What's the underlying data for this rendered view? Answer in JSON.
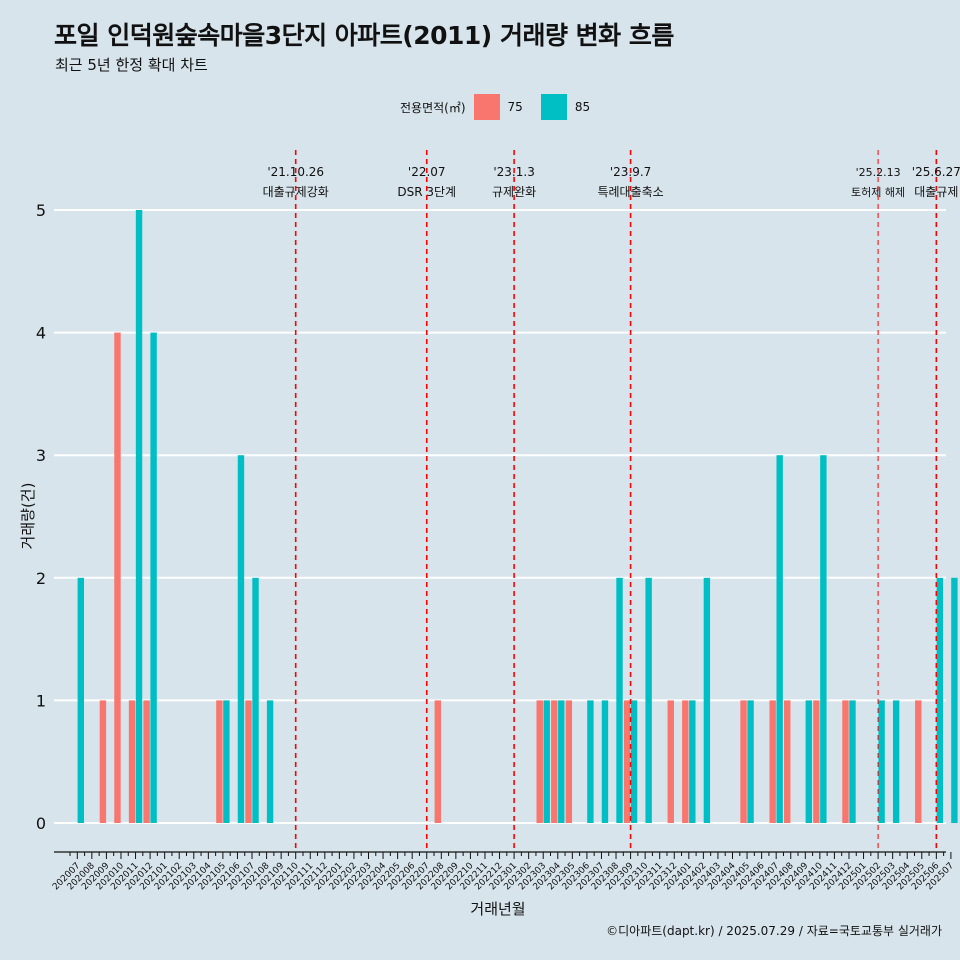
{
  "title": "포일 인덕원숲속마을3단지 아파트(2011) 거래량 변화 흐름",
  "subtitle": "최근 5년 한정 확대 차트",
  "caption": "©디아파트(dapt.kr) / 2025.07.29 / 자료=국토교통부 실거래가",
  "colors": {
    "s75": "#f8766d",
    "s85": "#00bfc4",
    "vline": "#ff0000",
    "grid": "#ffffff",
    "background": "#d7e4ec"
  },
  "chart_data": {
    "type": "bar",
    "title": "포일 인덕원숲속마을3단지 아파트(2011) 거래량 변화 흐름",
    "xlabel": "거래년월",
    "ylabel": "거래량(건)",
    "ylim": [
      -0.2,
      5.3
    ],
    "yticks": [
      0,
      1,
      2,
      3,
      4,
      5
    ],
    "legend_title": "전용면적(㎡)",
    "legend_position": "top",
    "categories": [
      "202007",
      "202008",
      "202009",
      "202010",
      "202011",
      "202012",
      "202101",
      "202102",
      "202103",
      "202104",
      "202105",
      "202106",
      "202107",
      "202108",
      "202109",
      "202110",
      "202111",
      "202112",
      "202201",
      "202202",
      "202203",
      "202204",
      "202205",
      "202206",
      "202207",
      "202208",
      "202209",
      "202210",
      "202211",
      "202212",
      "202301",
      "202302",
      "202303",
      "202304",
      "202305",
      "202306",
      "202307",
      "202308",
      "202309",
      "202310",
      "202311",
      "202312",
      "202401",
      "202402",
      "202403",
      "202404",
      "202405",
      "202406",
      "202407",
      "202408",
      "202409",
      "202410",
      "202411",
      "202412",
      "202501",
      "202502",
      "202503",
      "202504",
      "202505",
      "202506",
      "202507"
    ],
    "series": [
      {
        "name": "75",
        "values": [
          0,
          0,
          1,
          4,
          1,
          1,
          0,
          0,
          0,
          0,
          1,
          0,
          1,
          0,
          0,
          0,
          0,
          0,
          0,
          0,
          0,
          0,
          0,
          0,
          0,
          1,
          0,
          0,
          0,
          0,
          0,
          0,
          1,
          1,
          1,
          0,
          0,
          0,
          1,
          0,
          0,
          1,
          1,
          0,
          0,
          0,
          1,
          0,
          1,
          1,
          0,
          1,
          0,
          1,
          0,
          0,
          0,
          0,
          1,
          0,
          0
        ]
      },
      {
        "name": "85",
        "values": [
          2,
          0,
          0,
          0,
          5,
          4,
          0,
          0,
          0,
          0,
          1,
          3,
          2,
          1,
          0,
          0,
          0,
          0,
          0,
          0,
          0,
          0,
          0,
          0,
          0,
          0,
          0,
          0,
          0,
          0,
          0,
          0,
          1,
          1,
          0,
          1,
          1,
          2,
          1,
          2,
          0,
          0,
          1,
          2,
          0,
          0,
          1,
          0,
          3,
          0,
          1,
          3,
          0,
          1,
          0,
          1,
          1,
          0,
          0,
          2,
          2
        ]
      }
    ],
    "annotations": [
      {
        "category": "202110",
        "date": "'21.10.26",
        "label": "대출규제강화",
        "style": "dashed"
      },
      {
        "category": "202207",
        "date": "'22.07",
        "label": "DSR 3단계",
        "style": "dashed"
      },
      {
        "category": "202301",
        "date": "'23.1.3",
        "label": "규제완화",
        "style": "dashed"
      },
      {
        "category": "202309",
        "date": "'23.9.7",
        "label": "특례대출축소",
        "style": "dashed"
      },
      {
        "category": "202502",
        "date": "'25.2.13",
        "label": "토허제 해제",
        "style": "thin"
      },
      {
        "category": "202506",
        "date": "'25.6.27",
        "label": "대출규제",
        "style": "dashed"
      }
    ]
  }
}
